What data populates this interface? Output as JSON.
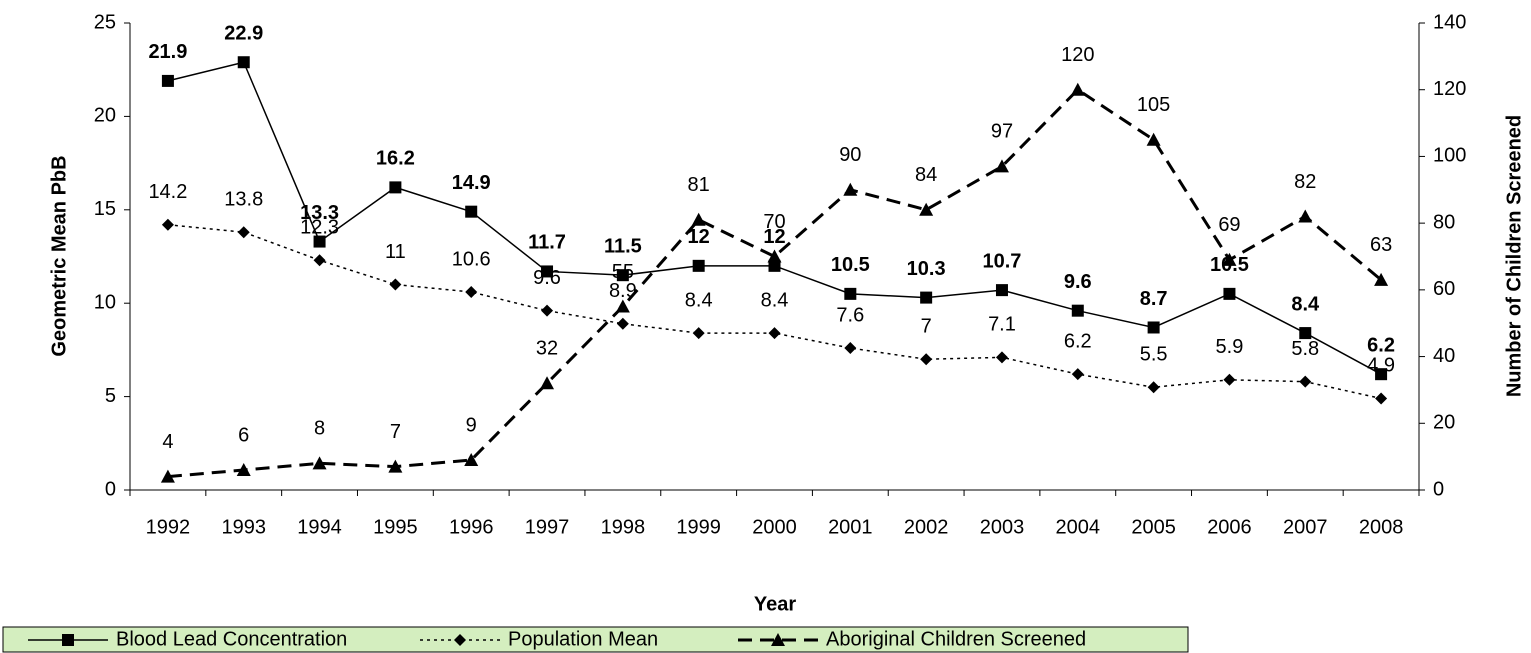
{
  "chart_data": {
    "type": "line",
    "categories": [
      "1992",
      "1993",
      "1994",
      "1995",
      "1996",
      "1997",
      "1998",
      "1999",
      "2000",
      "2001",
      "2002",
      "2003",
      "2004",
      "2005",
      "2006",
      "2007",
      "2008"
    ],
    "x_label": "Year",
    "y_label": "Geometric Mean PbB",
    "y2_label": "Number of Children Screened",
    "ylim": [
      0,
      25
    ],
    "yticks": [
      0,
      5,
      10,
      15,
      20,
      25
    ],
    "y2lim": [
      0,
      140
    ],
    "y2ticks": [
      0,
      20,
      40,
      60,
      80,
      100,
      120,
      140
    ],
    "legend": "bottom",
    "series": [
      {
        "name": "Blood Lead Concentration",
        "color": "#000000",
        "line_style": "solid",
        "marker": "square",
        "bold_labels": true,
        "values": [
          21.9,
          22.9,
          13.3,
          16.2,
          14.9,
          11.7,
          11.5,
          12,
          12,
          10.5,
          10.3,
          10.7,
          9.6,
          8.7,
          10.5,
          8.4,
          6.2
        ]
      },
      {
        "name": "Population Mean",
        "color": "#000000",
        "line_style": "dotted",
        "marker": "diamond",
        "bold_labels": false,
        "values": [
          14.2,
          13.8,
          12.3,
          11,
          10.6,
          9.6,
          8.9,
          8.4,
          8.4,
          7.6,
          7,
          7.1,
          6.2,
          5.5,
          5.9,
          5.8,
          4.9
        ]
      },
      {
        "name": "Aboriginal Children Screened",
        "color": "#000000",
        "line_style": "dashed",
        "marker": "triangle",
        "bold_labels": false,
        "axis": "y2",
        "values": [
          4,
          6,
          8,
          7,
          9,
          32,
          55,
          81,
          70,
          90,
          84,
          97,
          120,
          105,
          69,
          82,
          63
        ]
      }
    ]
  }
}
